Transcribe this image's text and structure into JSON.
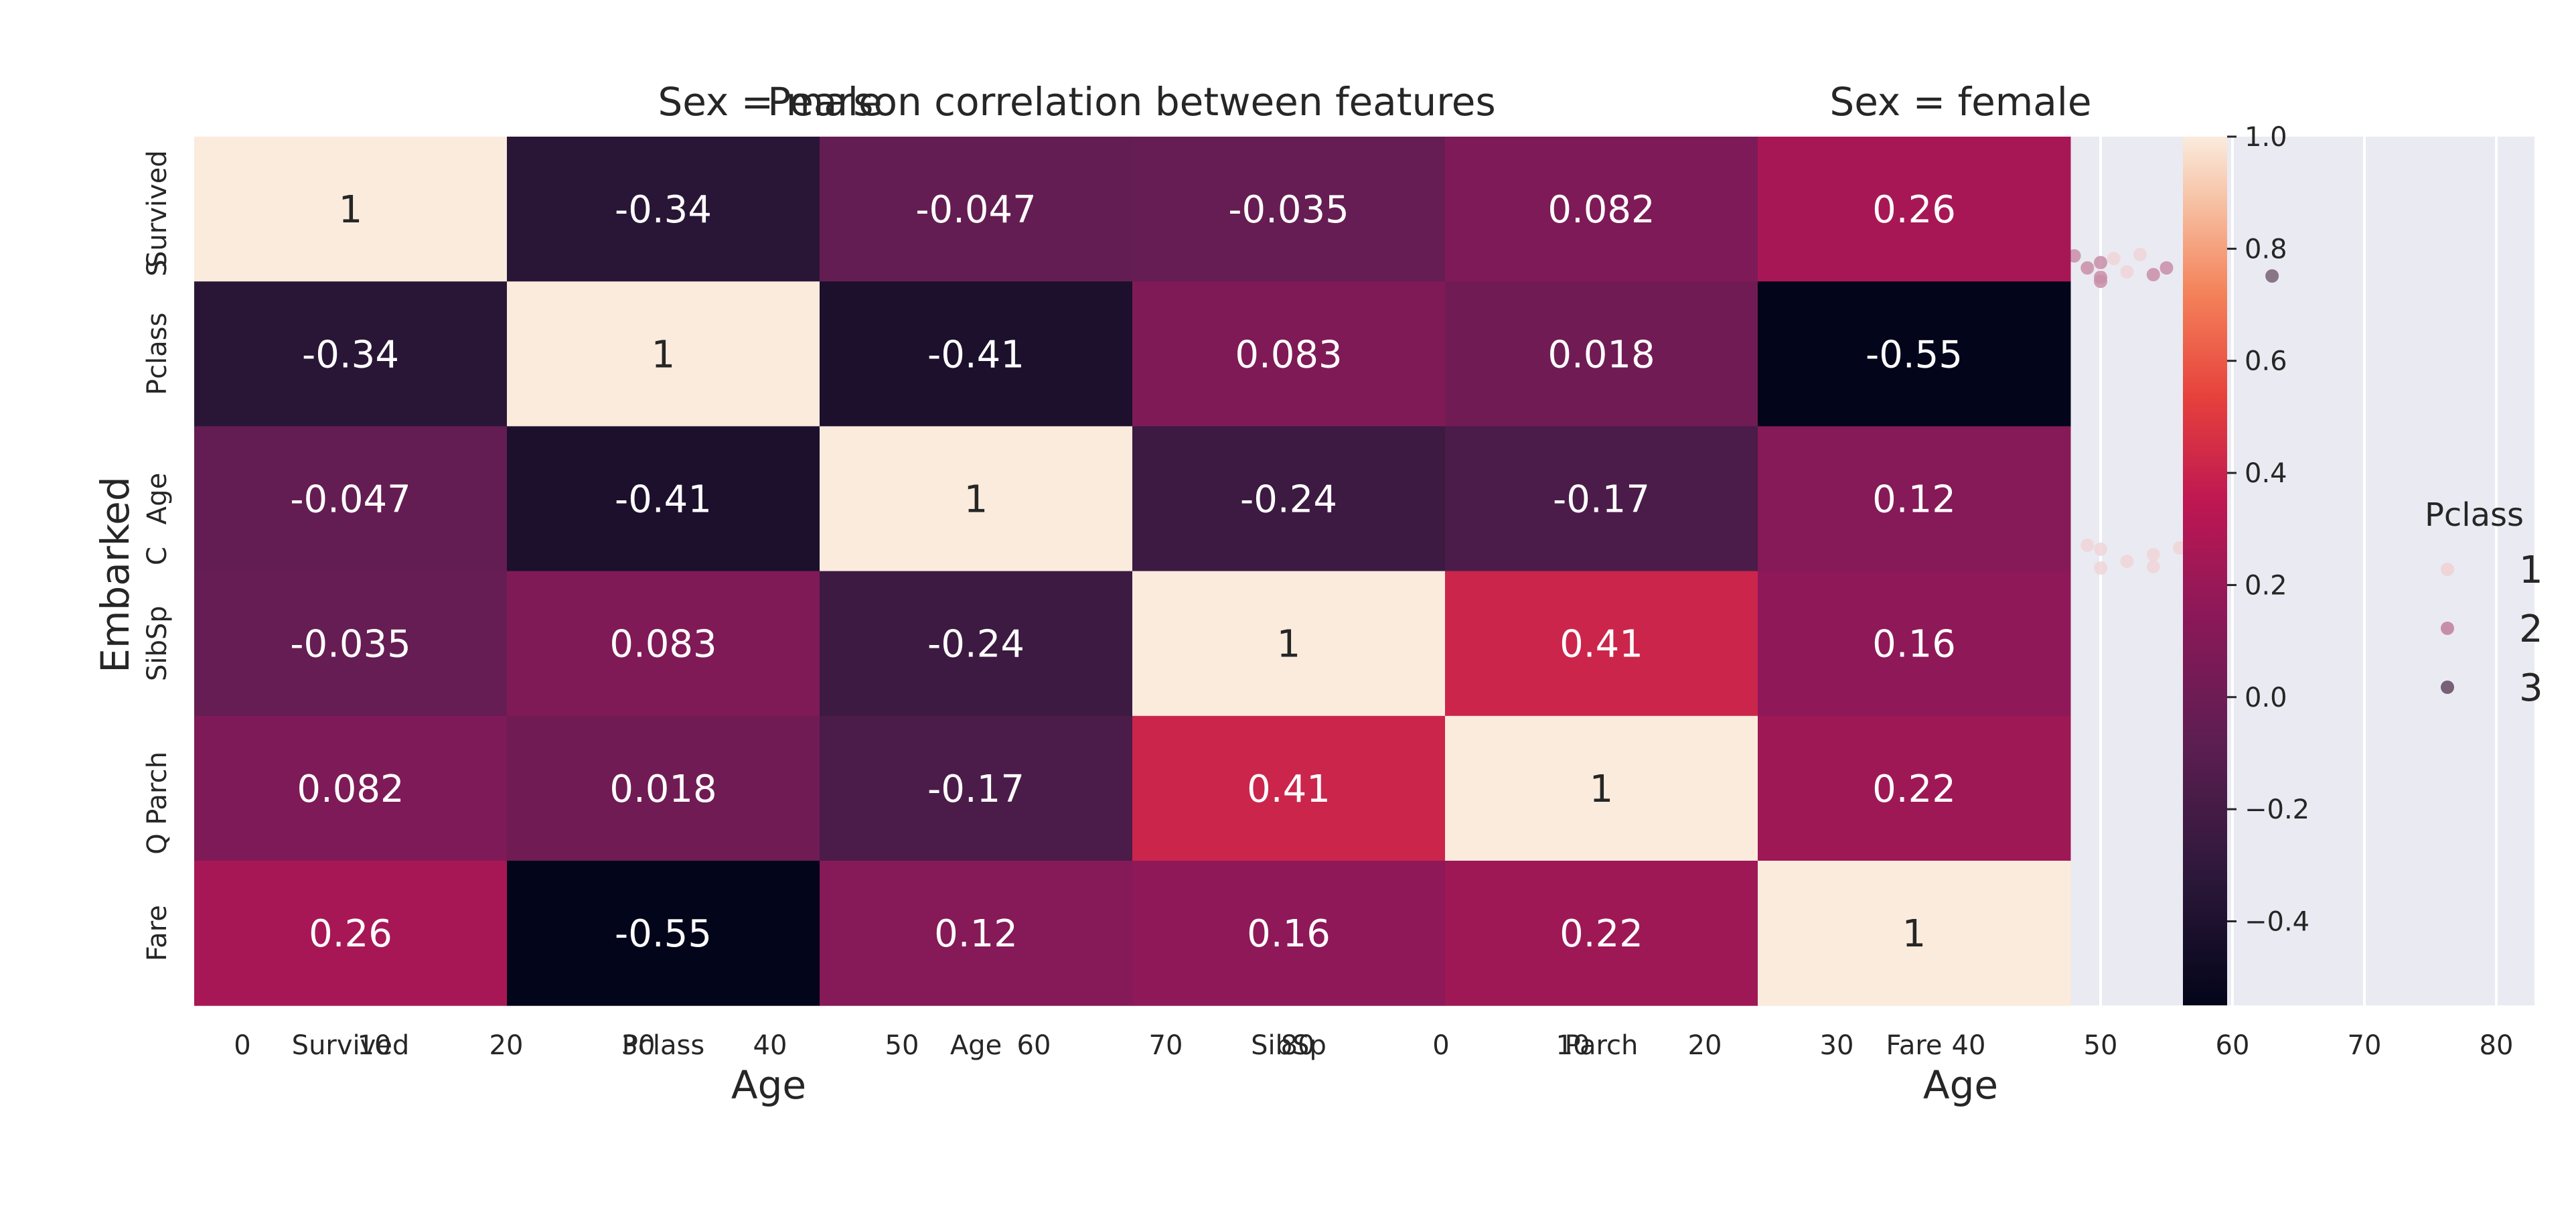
{
  "chart_data": [
    {
      "type": "scatter",
      "panel": "left",
      "title": "Sex = male",
      "xlabel": "Age",
      "ylabel": "Embarked",
      "xticks": [
        "0",
        "10",
        "20",
        "30",
        "40",
        "50",
        "60",
        "70",
        "80"
      ],
      "yticks": [
        "S",
        "C",
        "Q"
      ],
      "xlim": [
        -2,
        80
      ],
      "hue": "Pclass",
      "points": []
    },
    {
      "type": "scatter",
      "panel": "right",
      "title": "Sex = female",
      "xlabel": "Age",
      "xticks": [
        "0",
        "10",
        "20",
        "30",
        "40",
        "50",
        "60",
        "70",
        "80"
      ],
      "xlim": [
        -2,
        80
      ],
      "hue": "Pclass",
      "legend": {
        "title": "Pclass",
        "placement": "right",
        "entries": [
          "1",
          "2",
          "3"
        ],
        "colors": [
          "#f0d5d8",
          "#c98ea7",
          "#776176"
        ]
      },
      "points": [
        {
          "x": 48,
          "y": "S",
          "pclass": "2"
        },
        {
          "x": 49,
          "y": "S",
          "pclass": "2"
        },
        {
          "x": 50,
          "y": "S",
          "pclass": "2"
        },
        {
          "x": 50,
          "y": "S",
          "pclass": "2"
        },
        {
          "x": 50,
          "y": "S",
          "pclass": "2"
        },
        {
          "x": 51,
          "y": "S",
          "pclass": "1"
        },
        {
          "x": 52,
          "y": "S",
          "pclass": "1"
        },
        {
          "x": 53,
          "y": "S",
          "pclass": "1"
        },
        {
          "x": 54,
          "y": "S",
          "pclass": "2"
        },
        {
          "x": 55,
          "y": "S",
          "pclass": "2"
        },
        {
          "x": 57,
          "y": "S",
          "pclass": "2"
        },
        {
          "x": 63,
          "y": "S",
          "pclass": "3"
        },
        {
          "x": 50,
          "y": "C",
          "pclass": "1"
        },
        {
          "x": 50,
          "y": "C",
          "pclass": "1"
        },
        {
          "x": 49,
          "y": "C",
          "pclass": "1"
        },
        {
          "x": 52,
          "y": "C",
          "pclass": "1"
        },
        {
          "x": 54,
          "y": "C",
          "pclass": "1"
        },
        {
          "x": 54,
          "y": "C",
          "pclass": "1"
        },
        {
          "x": 56,
          "y": "C",
          "pclass": "1"
        }
      ]
    },
    {
      "type": "heatmap",
      "title": "Pearson correlation between features",
      "rows": [
        "Survived",
        "Pclass",
        "Age",
        "SibSp",
        "Parch",
        "Fare"
      ],
      "cols": [
        "Survived",
        "Pclass",
        "Age",
        "SibSp",
        "Parch",
        "Fare"
      ],
      "values": [
        [
          1,
          -0.34,
          -0.047,
          -0.035,
          0.082,
          0.26
        ],
        [
          -0.34,
          1,
          -0.41,
          0.083,
          0.018,
          -0.55
        ],
        [
          -0.047,
          -0.41,
          1,
          -0.24,
          -0.17,
          0.12
        ],
        [
          -0.035,
          0.083,
          -0.24,
          1,
          0.41,
          0.16
        ],
        [
          0.082,
          0.018,
          -0.17,
          0.41,
          1,
          0.22
        ],
        [
          0.26,
          -0.55,
          0.12,
          0.16,
          0.22,
          1
        ]
      ],
      "annotations": [
        [
          "1",
          "-0.34",
          "-0.047",
          "-0.035",
          "0.082",
          "0.26"
        ],
        [
          "-0.34",
          "1",
          "-0.41",
          "0.083",
          "0.018",
          "-0.55"
        ],
        [
          "-0.047",
          "-0.41",
          "1",
          "-0.24",
          "-0.17",
          "0.12"
        ],
        [
          "-0.035",
          "0.083",
          "-0.24",
          "1",
          "0.41",
          "0.16"
        ],
        [
          "0.082",
          "0.018",
          "-0.17",
          "0.41",
          "1",
          "0.22"
        ],
        [
          "0.26",
          "-0.55",
          "0.12",
          "0.16",
          "0.22",
          "1"
        ]
      ],
      "colorbar": {
        "range": [
          -0.55,
          1.0
        ],
        "ticks": [
          "1.0",
          "0.8",
          "0.6",
          "0.4",
          "0.2",
          "0.0",
          "−0.2",
          "−0.4"
        ],
        "tick_values": [
          1.0,
          0.8,
          0.6,
          0.4,
          0.2,
          0.0,
          -0.2,
          -0.4
        ]
      },
      "colormap": "rocket"
    }
  ]
}
